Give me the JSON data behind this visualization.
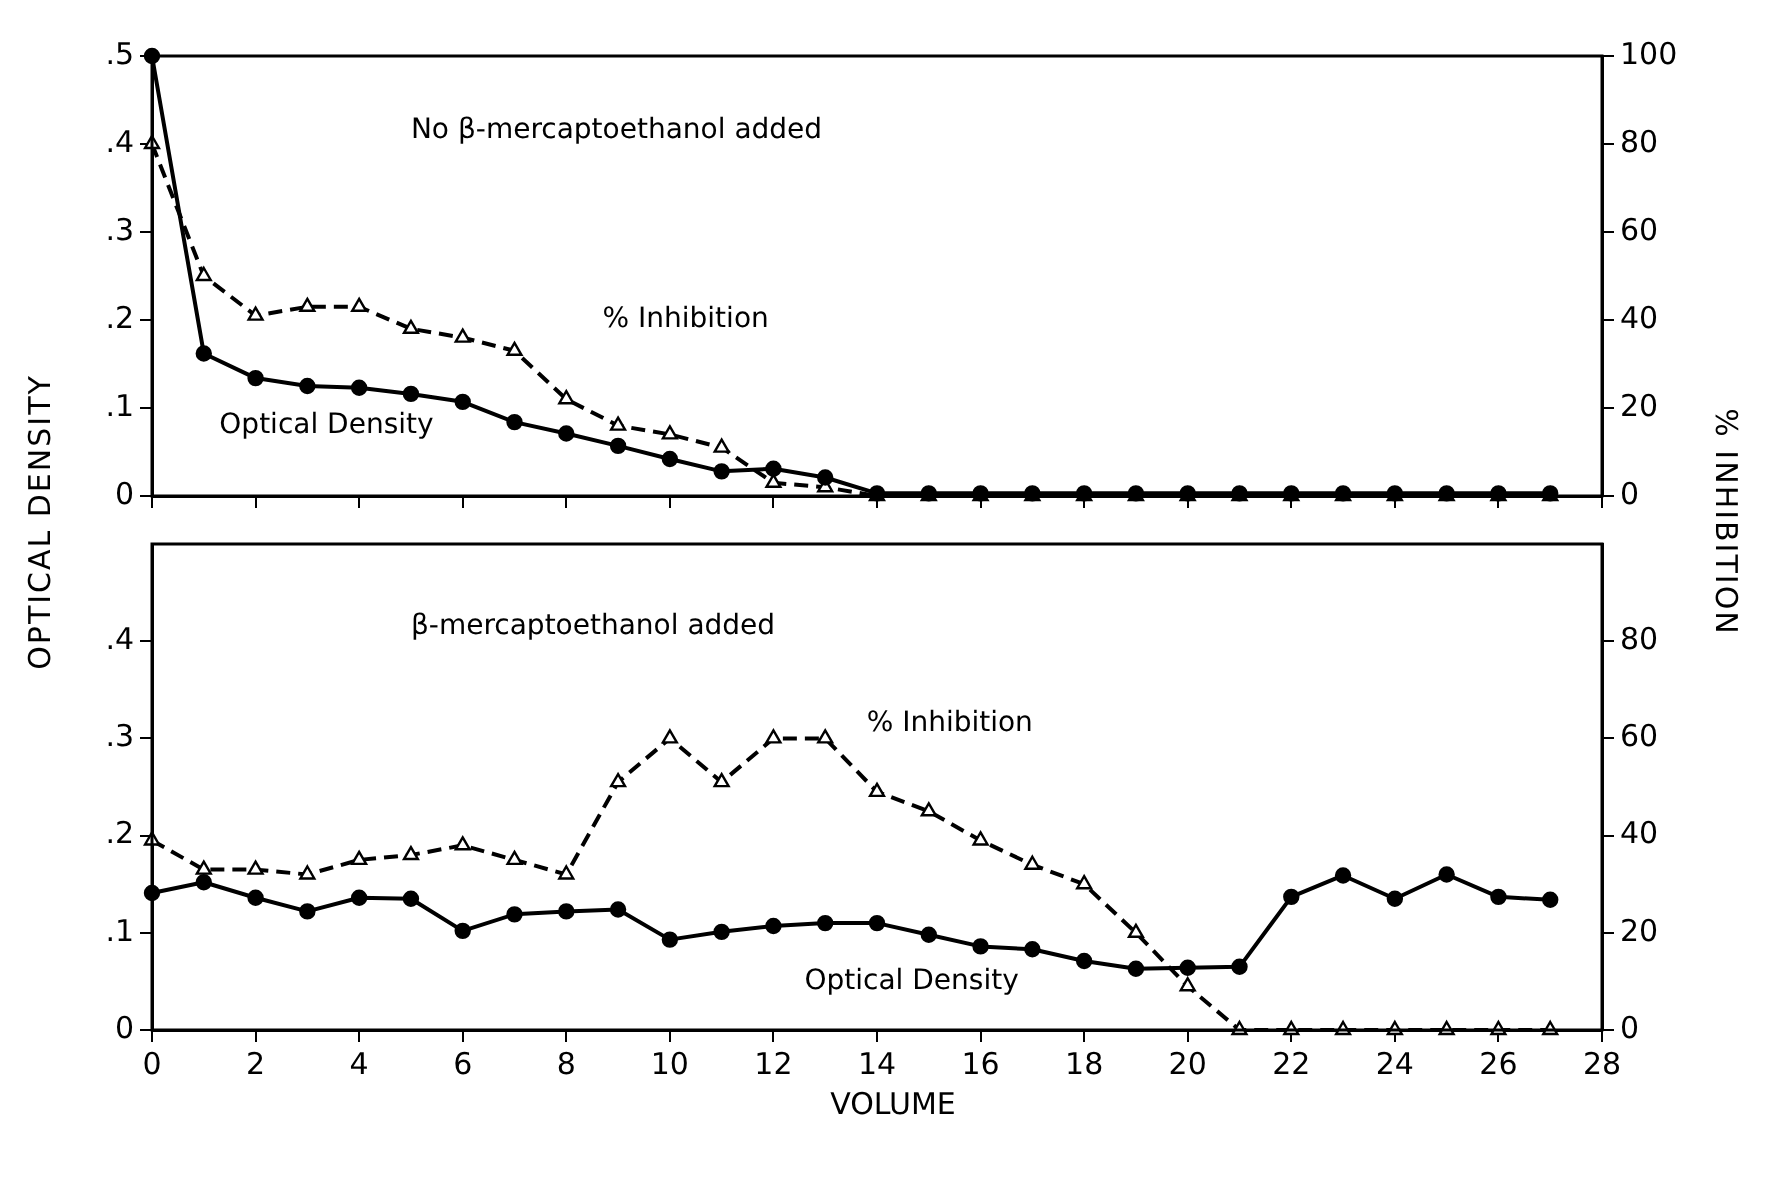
{
  "chart_data": [
    {
      "type": "line",
      "annotations": [
        "No β-mercaptoethanol added"
      ],
      "ylabel": "OPTICAL DENSITY",
      "y2label": "% INHIBITION",
      "x": [
        0,
        1,
        2,
        3,
        4,
        5,
        6,
        7,
        8,
        9,
        10,
        11,
        12,
        13,
        14,
        15,
        16,
        17,
        18,
        19,
        20,
        21,
        22,
        23,
        24,
        25,
        26,
        27
      ],
      "series": [
        {
          "name": "Optical Density",
          "color": "#000000",
          "marker": "circle",
          "line_style": "solid",
          "values": [
            0.5,
            0.162,
            0.134,
            0.125,
            0.123,
            0.116,
            0.107,
            0.084,
            0.071,
            0.057,
            0.042,
            0.028,
            0.031,
            0.021,
            0.003,
            0.003,
            0.003,
            0.003,
            0.003,
            0.003,
            0.003,
            0.003,
            0.003,
            0.003,
            0.003,
            0.003,
            0.003,
            0.003
          ]
        },
        {
          "name": "% Inhibition",
          "color": "#000000",
          "marker": "triangle",
          "line_style": "dashed",
          "axis": "y2",
          "values": [
            80,
            50,
            41,
            43,
            43,
            38,
            36,
            33,
            22,
            16,
            14,
            11,
            3,
            2,
            0,
            0,
            0,
            0,
            0,
            0,
            0,
            0,
            0,
            0,
            0,
            0,
            0,
            0
          ]
        }
      ],
      "xlim": [
        0,
        28
      ],
      "xticks": [
        0,
        2,
        4,
        6,
        8,
        10,
        12,
        14,
        16,
        18,
        20,
        22,
        24,
        26,
        28
      ],
      "ylim": [
        0,
        0.5
      ],
      "yticks": [
        0,
        {
          "value": 0.1,
          "label": ".1"
        },
        {
          "value": 0.2,
          "label": ".2"
        },
        {
          "value": 0.3,
          "label": ".3"
        },
        {
          "value": 0.4,
          "label": ".4"
        },
        {
          "value": 0.5,
          "label": ".5"
        }
      ],
      "y2lim": [
        0,
        100
      ],
      "y2ticks": [
        0,
        20,
        40,
        60,
        80,
        100
      ],
      "tick_labels": "y",
      "grid": false,
      "legend": false
    },
    {
      "type": "line",
      "annotations": [
        "β-mercaptoethanol added"
      ],
      "xlabel": "VOLUME",
      "x": [
        0,
        1,
        2,
        3,
        4,
        5,
        6,
        7,
        8,
        9,
        10,
        11,
        12,
        13,
        14,
        15,
        16,
        17,
        18,
        19,
        20,
        21,
        22,
        23,
        24,
        25,
        26,
        27
      ],
      "series": [
        {
          "name": "Optical Density",
          "color": "#000000",
          "marker": "circle",
          "line_style": "solid",
          "values": [
            0.141,
            0.152,
            0.136,
            0.122,
            0.136,
            0.135,
            0.102,
            0.119,
            0.122,
            0.124,
            0.093,
            0.101,
            0.107,
            0.11,
            0.11,
            0.098,
            0.086,
            0.083,
            0.071,
            0.063,
            0.064,
            0.065,
            0.137,
            0.159,
            0.135,
            0.16,
            0.137,
            0.134
          ]
        },
        {
          "name": "% Inhibition",
          "color": "#000000",
          "marker": "triangle",
          "line_style": "dashed",
          "axis": "y2",
          "values": [
            39,
            33,
            33,
            32,
            35,
            36,
            38,
            35,
            32,
            51,
            60,
            51,
            60,
            60,
            49,
            45,
            39,
            34,
            30,
            20,
            9,
            0,
            0,
            0,
            0,
            0,
            0,
            0
          ]
        }
      ],
      "xlim": [
        0,
        28
      ],
      "xticks": [
        0,
        2,
        4,
        6,
        8,
        10,
        12,
        14,
        16,
        18,
        20,
        22,
        24,
        26,
        28
      ],
      "ylim": [
        0,
        0.5
      ],
      "yticks": [
        0,
        {
          "value": 0.1,
          "label": ".1"
        },
        {
          "value": 0.2,
          "label": ".2"
        },
        {
          "value": 0.3,
          "label": ".3"
        },
        {
          "value": 0.4,
          "label": ".4"
        }
      ],
      "y2lim": [
        0,
        100
      ],
      "y2ticks": [
        0,
        20,
        40,
        60,
        80
      ],
      "grid": false,
      "legend": false
    }
  ]
}
